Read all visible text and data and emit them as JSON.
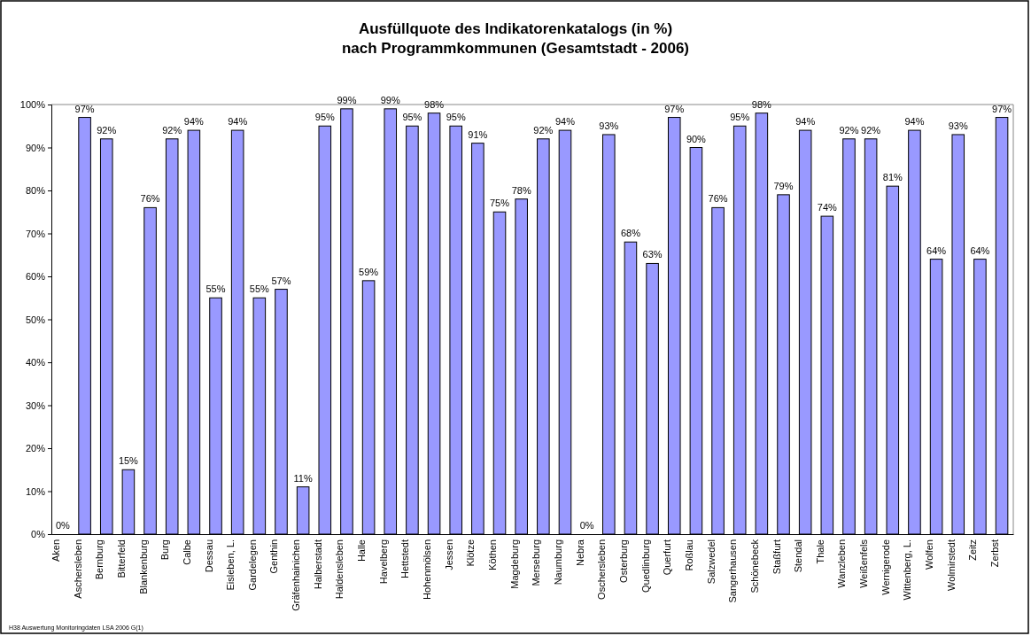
{
  "chart_data": {
    "type": "bar",
    "title": "Ausfüllquote des Indikatorenkatalogs (in %)\nnach Programmkommunen (Gesamtstadt - 2006)",
    "categories": [
      "Aken",
      "Aschersleben",
      "Bernburg",
      "Bitterfeld",
      "Blankenburg",
      "Burg",
      "Calbe",
      "Dessau",
      "Eisleben, L.",
      "Gardelegen",
      "Genthin",
      "Gräfenhainichen",
      "Halberstadt",
      "Haldensleben",
      "Halle",
      "Havelberg",
      "Hettstedt",
      "Hohenmölsen",
      "Jessen",
      "Klötze",
      "Köthen",
      "Magdeburg",
      "Merseburg",
      "Naumburg",
      "Nebra",
      "Oschersleben",
      "Osterburg",
      "Quedlinburg",
      "Querfurt",
      "Roßlau",
      "Salzwedel",
      "Sangerhausen",
      "Schönebeck",
      "Staßfurt",
      "Stendal",
      "Thale",
      "Wanzleben",
      "Weißenfels",
      "Wernigerode",
      "Wittenberg, L.",
      "Wolfen",
      "Wolmirstedt",
      "Zeitz",
      "Zerbst"
    ],
    "values": [
      0,
      97,
      92,
      15,
      76,
      92,
      94,
      55,
      94,
      55,
      57,
      11,
      95,
      99,
      59,
      99,
      95,
      98,
      95,
      91,
      75,
      78,
      92,
      94,
      0,
      93,
      68,
      63,
      97,
      90,
      76,
      95,
      98,
      79,
      94,
      74,
      92,
      92,
      81,
      94,
      64,
      93,
      64,
      97
    ],
    "value_labels": [
      "0%",
      "97%",
      "92%",
      "15%",
      "76%",
      "92%",
      "94%",
      "55%",
      "94%",
      "55%",
      "57%",
      "11%",
      "95%",
      "99%",
      "59%",
      "99%",
      "95%",
      "98%",
      "95%",
      "91%",
      "75%",
      "78%",
      "92%",
      "94%",
      "0%",
      "93%",
      "68%",
      "63%",
      "97%",
      "90%",
      "76%",
      "95%",
      "98%",
      "79%",
      "94%",
      "74%",
      "92%",
      "92%",
      "81%",
      "94%",
      "64%",
      "93%",
      "64%",
      "97%"
    ],
    "color": "#9999ff",
    "ylim": [
      0,
      100
    ],
    "yticks": [
      {
        "value": 0,
        "label": "0%"
      },
      {
        "value": 10,
        "label": "10%"
      },
      {
        "value": 20,
        "label": "20%"
      },
      {
        "value": 30,
        "label": "30%"
      },
      {
        "value": 40,
        "label": "40%"
      },
      {
        "value": 50,
        "label": "50%"
      },
      {
        "value": 60,
        "label": "60%"
      },
      {
        "value": 70,
        "label": "70%"
      },
      {
        "value": 80,
        "label": "80%"
      },
      {
        "value": 90,
        "label": "90%"
      },
      {
        "value": 100,
        "label": "100%"
      }
    ],
    "grid": false,
    "annotations": [
      "H38 Auswertung Monitoringdaten LSA 2006 G(1)"
    ]
  }
}
